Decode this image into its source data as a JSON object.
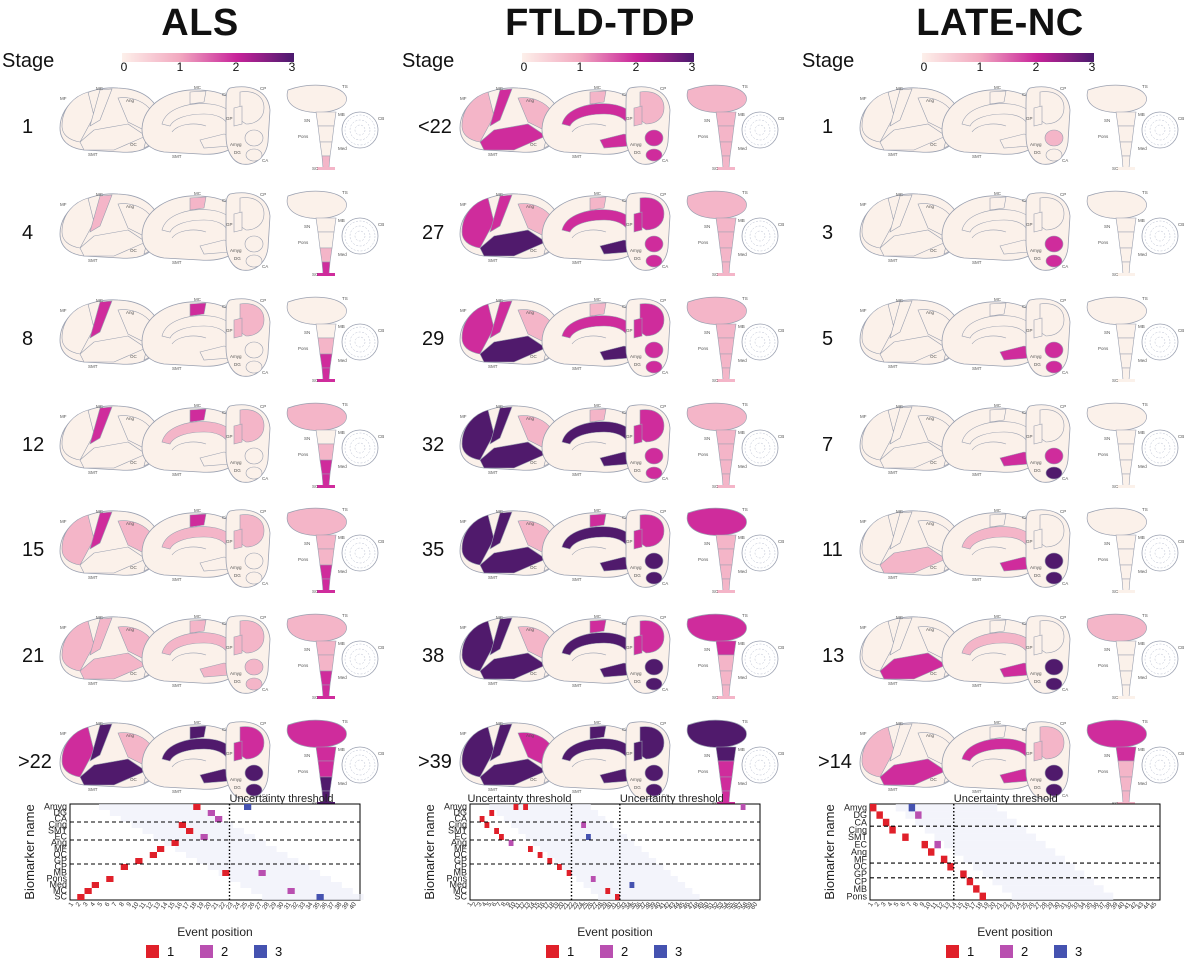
{
  "colorbar": {
    "ticks": [
      "0",
      "1",
      "2",
      "3"
    ],
    "colors": [
      "#fdf0ea",
      "#f2a9c0",
      "#c8239a",
      "#4a1a6e"
    ]
  },
  "stage_header": "Stage",
  "severity_colors": [
    "#fbf1ea",
    "#f4b5c8",
    "#cf2c9c",
    "#501a6c"
  ],
  "line_color": "#9aa0b0",
  "panels": [
    {
      "title": "ALS",
      "stages": [
        "1",
        "4",
        "8",
        "12",
        "15",
        "21",
        ">22"
      ],
      "region_labels": {
        "lat_front": "MF",
        "lat_mc": "MC",
        "lat_ang": "Ang",
        "lat_smt": "SMT",
        "lat_oc": "OC",
        "med_mc": "MC",
        "med_cing": "Cing",
        "med_ofc": "OFC",
        "med_smt": "SMT",
        "med_ec": "EC",
        "cor_cp": "CP",
        "cor_gp": "GP",
        "cor_amyg": "Amyg",
        "cor_dg": "DG",
        "cor_ca": "CA",
        "bs_ts": "TS",
        "bs_mb": "MB",
        "bs_cb": "CB",
        "bs_sn": "SN",
        "bs_pons": "Pons",
        "bs_med": "Med",
        "bs_sc": "SC"
      },
      "brain_levels": [
        {
          "front": 0,
          "motor": 0,
          "ang": 0,
          "temporal": 0,
          "occ": 0,
          "med_motor": 0,
          "cing": 0,
          "mtl": 0,
          "cp": 0,
          "gp": 0,
          "amyg": 0,
          "dg": 0,
          "thal": 0,
          "mb": 0,
          "pons": 0,
          "med": 0,
          "sc": 1
        },
        {
          "front": 0,
          "motor": 1,
          "ang": 0,
          "temporal": 0,
          "occ": 0,
          "med_motor": 1,
          "cing": 0,
          "mtl": 0,
          "cp": 0,
          "gp": 0,
          "amyg": 0,
          "dg": 0,
          "thal": 0,
          "mb": 0,
          "pons": 0,
          "med": 1,
          "sc": 2
        },
        {
          "front": 0,
          "motor": 2,
          "ang": 0,
          "temporal": 0,
          "occ": 0,
          "med_motor": 2,
          "cing": 0,
          "mtl": 0,
          "cp": 1,
          "gp": 1,
          "amyg": 0,
          "dg": 0,
          "thal": 0,
          "mb": 0,
          "pons": 1,
          "med": 2,
          "sc": 2
        },
        {
          "front": 0,
          "motor": 2,
          "ang": 0,
          "temporal": 0,
          "occ": 0,
          "med_motor": 2,
          "cing": 1,
          "mtl": 0,
          "cp": 1,
          "gp": 1,
          "amyg": 0,
          "dg": 0,
          "thal": 1,
          "mb": 0,
          "pons": 1,
          "med": 2,
          "sc": 2
        },
        {
          "front": 1,
          "motor": 2,
          "ang": 1,
          "temporal": 0,
          "occ": 0,
          "med_motor": 2,
          "cing": 1,
          "mtl": 0,
          "cp": 1,
          "gp": 1,
          "amyg": 0,
          "dg": 0,
          "thal": 1,
          "mb": 1,
          "pons": 1,
          "med": 2,
          "sc": 2
        },
        {
          "front": 1,
          "motor": 1,
          "ang": 1,
          "temporal": 1,
          "occ": 0,
          "med_motor": 1,
          "cing": 1,
          "mtl": 1,
          "cp": 1,
          "gp": 1,
          "amyg": 1,
          "dg": 1,
          "thal": 1,
          "mb": 1,
          "pons": 1,
          "med": 2,
          "sc": 2
        },
        {
          "front": 2,
          "motor": 3,
          "ang": 1,
          "temporal": 3,
          "occ": 0,
          "med_motor": 3,
          "cing": 3,
          "mtl": 3,
          "cp": 2,
          "gp": 2,
          "amyg": 3,
          "dg": 3,
          "thal": 2,
          "mb": 2,
          "pons": 2,
          "med": 3,
          "sc": 3
        }
      ],
      "heatmap": {
        "ylabel": "Biomarker name",
        "xlabel": "Event position",
        "thresholds": [
          {
            "label": "Uncertainty threshold",
            "pos": 22
          }
        ],
        "n_events": 40,
        "y_tick_labels": [
          "Amyg",
          "DG",
          "CA",
          "Cing",
          "SMT",
          "EC",
          "Ang",
          "MF",
          "OC",
          "GP",
          "CP",
          "MB",
          "Pons",
          "Med",
          "MC",
          "SC"
        ],
        "group_breaks": [
          3,
          6,
          10
        ],
        "cells": [
          {
            "row": 0,
            "col": 17,
            "cls": 1
          },
          {
            "row": 0,
            "col": 24,
            "cls": 3
          },
          {
            "row": 1,
            "col": 19,
            "cls": 2
          },
          {
            "row": 2,
            "col": 20,
            "cls": 2
          },
          {
            "row": 3,
            "col": 15,
            "cls": 1
          },
          {
            "row": 4,
            "col": 16,
            "cls": 1
          },
          {
            "row": 5,
            "col": 18,
            "cls": 2
          },
          {
            "row": 6,
            "col": 14,
            "cls": 1
          },
          {
            "row": 7,
            "col": 12,
            "cls": 1
          },
          {
            "row": 8,
            "col": 11,
            "cls": 1
          },
          {
            "row": 9,
            "col": 9,
            "cls": 1
          },
          {
            "row": 10,
            "col": 7,
            "cls": 1
          },
          {
            "row": 11,
            "col": 21,
            "cls": 1
          },
          {
            "row": 11,
            "col": 26,
            "cls": 2
          },
          {
            "row": 12,
            "col": 5,
            "cls": 1
          },
          {
            "row": 13,
            "col": 3,
            "cls": 1
          },
          {
            "row": 14,
            "col": 2,
            "cls": 1
          },
          {
            "row": 14,
            "col": 30,
            "cls": 2
          },
          {
            "row": 15,
            "col": 1,
            "cls": 1
          },
          {
            "row": 15,
            "col": 34,
            "cls": 3
          }
        ]
      }
    },
    {
      "title": "FTLD-TDP",
      "stages": [
        "<22",
        "27",
        "29",
        "32",
        "35",
        "38",
        ">39"
      ],
      "region_labels": {
        "lat_front": "MF",
        "lat_mc": "MC",
        "lat_ang": "Ang",
        "lat_smt": "SMT",
        "lat_oc": "OC",
        "med_mc": "MC",
        "med_cing": "Cing",
        "med_ofc": "OFC",
        "med_smt": "SMT",
        "med_ec": "EC",
        "cor_cp": "CP",
        "cor_gp": "GP",
        "cor_amyg": "Amyg",
        "cor_dg": "DG",
        "cor_ca": "CA",
        "bs_ts": "TS",
        "bs_mb": "MB",
        "bs_cb": "CB",
        "bs_sn": "SN",
        "bs_pons": "Pons",
        "bs_med": "Med",
        "bs_sc": "SC"
      },
      "brain_levels": [
        {
          "front": 1,
          "motor": 2,
          "ang": 1,
          "temporal": 2,
          "occ": 0,
          "med_motor": 1,
          "cing": 2,
          "mtl": 2,
          "cp": 1,
          "gp": 1,
          "amyg": 2,
          "dg": 2,
          "thal": 1,
          "mb": 1,
          "pons": 1,
          "med": 1,
          "sc": 1
        },
        {
          "front": 2,
          "motor": 2,
          "ang": 1,
          "temporal": 3,
          "occ": 0,
          "med_motor": 1,
          "cing": 2,
          "mtl": 3,
          "cp": 2,
          "gp": 2,
          "amyg": 2,
          "dg": 2,
          "thal": 1,
          "mb": 1,
          "pons": 1,
          "med": 1,
          "sc": 1
        },
        {
          "front": 2,
          "motor": 2,
          "ang": 1,
          "temporal": 3,
          "occ": 0,
          "med_motor": 1,
          "cing": 2,
          "mtl": 3,
          "cp": 2,
          "gp": 2,
          "amyg": 2,
          "dg": 2,
          "thal": 1,
          "mb": 1,
          "pons": 1,
          "med": 1,
          "sc": 1
        },
        {
          "front": 3,
          "motor": 3,
          "ang": 1,
          "temporal": 3,
          "occ": 0,
          "med_motor": 1,
          "cing": 3,
          "mtl": 3,
          "cp": 2,
          "gp": 2,
          "amyg": 2,
          "dg": 2,
          "thal": 1,
          "mb": 1,
          "pons": 1,
          "med": 1,
          "sc": 1
        },
        {
          "front": 3,
          "motor": 3,
          "ang": 1,
          "temporal": 3,
          "occ": 0,
          "med_motor": 2,
          "cing": 3,
          "mtl": 3,
          "cp": 2,
          "gp": 2,
          "amyg": 3,
          "dg": 3,
          "thal": 2,
          "mb": 1,
          "pons": 1,
          "med": 1,
          "sc": 1
        },
        {
          "front": 3,
          "motor": 3,
          "ang": 1,
          "temporal": 3,
          "occ": 0,
          "med_motor": 2,
          "cing": 3,
          "mtl": 3,
          "cp": 2,
          "gp": 2,
          "amyg": 3,
          "dg": 3,
          "thal": 2,
          "mb": 2,
          "pons": 1,
          "med": 1,
          "sc": 1
        },
        {
          "front": 3,
          "motor": 3,
          "ang": 2,
          "temporal": 3,
          "occ": 0,
          "med_motor": 3,
          "cing": 3,
          "mtl": 3,
          "cp": 3,
          "gp": 3,
          "amyg": 3,
          "dg": 3,
          "thal": 3,
          "mb": 3,
          "pons": 2,
          "med": 2,
          "sc": 2
        }
      ],
      "heatmap": {
        "ylabel": "Biomarker name",
        "xlabel": "Event position",
        "thresholds": [
          {
            "label": "Uncertainty threshold",
            "pos": 21
          },
          {
            "label": "Uncertainty threshold",
            "pos": 31
          }
        ],
        "n_events": 60,
        "y_tick_labels": [
          "Amyg",
          "DG",
          "CA",
          "Cing",
          "SMT",
          "EC",
          "Ang",
          "MF",
          "OC",
          "GP",
          "CP",
          "MB",
          "Pons",
          "Med",
          "MC",
          "SC"
        ],
        "group_breaks": [
          3,
          6,
          10
        ],
        "cells": [
          {
            "row": 0,
            "col": 9,
            "cls": 1
          },
          {
            "row": 0,
            "col": 11,
            "cls": 1
          },
          {
            "row": 0,
            "col": 56,
            "cls": 2
          },
          {
            "row": 1,
            "col": 4,
            "cls": 1
          },
          {
            "row": 2,
            "col": 2,
            "cls": 1
          },
          {
            "row": 3,
            "col": 3,
            "cls": 1
          },
          {
            "row": 3,
            "col": 23,
            "cls": 2
          },
          {
            "row": 4,
            "col": 5,
            "cls": 1
          },
          {
            "row": 5,
            "col": 6,
            "cls": 1
          },
          {
            "row": 5,
            "col": 24,
            "cls": 3
          },
          {
            "row": 6,
            "col": 8,
            "cls": 2
          },
          {
            "row": 7,
            "col": 12,
            "cls": 1
          },
          {
            "row": 8,
            "col": 14,
            "cls": 1
          },
          {
            "row": 9,
            "col": 16,
            "cls": 1
          },
          {
            "row": 10,
            "col": 18,
            "cls": 1
          },
          {
            "row": 11,
            "col": 20,
            "cls": 1
          },
          {
            "row": 12,
            "col": 25,
            "cls": 2
          },
          {
            "row": 13,
            "col": 33,
            "cls": 3
          },
          {
            "row": 14,
            "col": 28,
            "cls": 1
          },
          {
            "row": 15,
            "col": 30,
            "cls": 1
          }
        ]
      }
    },
    {
      "title": "LATE-NC",
      "stages": [
        "1",
        "3",
        "5",
        "7",
        "11",
        "13",
        ">14"
      ],
      "region_labels": {
        "lat_front": "MF",
        "lat_mc": "MC",
        "lat_ang": "Ang",
        "lat_smt": "SMT",
        "lat_oc": "OC",
        "med_mc": "MC",
        "med_cing": "Cing",
        "med_ofc": "OFC",
        "med_smt": "SMT",
        "med_ec": "EC",
        "cor_cp": "CP",
        "cor_gp": "GP",
        "cor_amyg": "Amyg",
        "cor_dg": "DG",
        "cor_ca": "CA",
        "bs_ts": "TS",
        "bs_mb": "MB",
        "bs_cb": "CB",
        "bs_sn": "SN",
        "bs_pons": "Pons",
        "bs_med": "Med",
        "bs_sc": "SC"
      },
      "brain_levels": [
        {
          "front": 0,
          "motor": 0,
          "ang": 0,
          "temporal": 0,
          "occ": 0,
          "med_motor": 0,
          "cing": 0,
          "mtl": 0,
          "cp": 0,
          "gp": 0,
          "amyg": 1,
          "dg": 0,
          "thal": 0,
          "mb": 0,
          "pons": 0,
          "med": 0,
          "sc": 0
        },
        {
          "front": 0,
          "motor": 0,
          "ang": 0,
          "temporal": 0,
          "occ": 0,
          "med_motor": 0,
          "cing": 0,
          "mtl": 0,
          "cp": 0,
          "gp": 0,
          "amyg": 2,
          "dg": 2,
          "thal": 0,
          "mb": 0,
          "pons": 0,
          "med": 0,
          "sc": 0
        },
        {
          "front": 0,
          "motor": 0,
          "ang": 0,
          "temporal": 0,
          "occ": 0,
          "med_motor": 0,
          "cing": 0,
          "mtl": 2,
          "cp": 0,
          "gp": 0,
          "amyg": 2,
          "dg": 2,
          "thal": 0,
          "mb": 0,
          "pons": 0,
          "med": 0,
          "sc": 0
        },
        {
          "front": 0,
          "motor": 0,
          "ang": 0,
          "temporal": 0,
          "occ": 0,
          "med_motor": 0,
          "cing": 0,
          "mtl": 2,
          "cp": 0,
          "gp": 0,
          "amyg": 2,
          "dg": 3,
          "thal": 0,
          "mb": 0,
          "pons": 0,
          "med": 0,
          "sc": 0
        },
        {
          "front": 0,
          "motor": 0,
          "ang": 0,
          "temporal": 1,
          "occ": 0,
          "med_motor": 0,
          "cing": 1,
          "mtl": 2,
          "cp": 0,
          "gp": 0,
          "amyg": 3,
          "dg": 3,
          "thal": 0,
          "mb": 0,
          "pons": 0,
          "med": 0,
          "sc": 0
        },
        {
          "front": 0,
          "motor": 0,
          "ang": 0,
          "temporal": 2,
          "occ": 0,
          "med_motor": 0,
          "cing": 1,
          "mtl": 2,
          "cp": 0,
          "gp": 0,
          "amyg": 3,
          "dg": 3,
          "thal": 1,
          "mb": 0,
          "pons": 0,
          "med": 0,
          "sc": 0
        },
        {
          "front": 1,
          "motor": 0,
          "ang": 0,
          "temporal": 2,
          "occ": 0,
          "med_motor": 0,
          "cing": 2,
          "mtl": 2,
          "cp": 1,
          "gp": 1,
          "amyg": 3,
          "dg": 3,
          "thal": 2,
          "mb": 2,
          "pons": 1,
          "med": 1,
          "sc": 1
        }
      ],
      "heatmap": {
        "ylabel": "Biomarker name",
        "xlabel": "Event position",
        "thresholds": [
          {
            "label": "Uncertainty threshold",
            "pos": 13
          }
        ],
        "n_events": 45,
        "y_tick_labels": [
          "Amyg",
          "DG",
          "CA",
          "Cing",
          "SMT",
          "EC",
          "Ang",
          "MF",
          "OC",
          "GP",
          "CP",
          "MB",
          "Pons"
        ],
        "group_breaks": [
          3,
          8,
          10
        ],
        "cells": [
          {
            "row": 0,
            "col": 0,
            "cls": 1
          },
          {
            "row": 0,
            "col": 6,
            "cls": 3
          },
          {
            "row": 1,
            "col": 1,
            "cls": 1
          },
          {
            "row": 1,
            "col": 7,
            "cls": 2
          },
          {
            "row": 2,
            "col": 2,
            "cls": 1
          },
          {
            "row": 3,
            "col": 3,
            "cls": 1
          },
          {
            "row": 4,
            "col": 5,
            "cls": 1
          },
          {
            "row": 5,
            "col": 8,
            "cls": 1
          },
          {
            "row": 5,
            "col": 10,
            "cls": 2
          },
          {
            "row": 6,
            "col": 9,
            "cls": 1
          },
          {
            "row": 7,
            "col": 11,
            "cls": 1
          },
          {
            "row": 8,
            "col": 12,
            "cls": 1
          },
          {
            "row": 9,
            "col": 14,
            "cls": 1
          },
          {
            "row": 10,
            "col": 15,
            "cls": 1
          },
          {
            "row": 11,
            "col": 16,
            "cls": 1
          },
          {
            "row": 12,
            "col": 17,
            "cls": 1
          }
        ]
      }
    }
  ],
  "legend": {
    "items": [
      {
        "label": "1",
        "color": "#e0202a"
      },
      {
        "label": "2",
        "color": "#b94fb0"
      },
      {
        "label": "3",
        "color": "#4552b0"
      }
    ]
  }
}
